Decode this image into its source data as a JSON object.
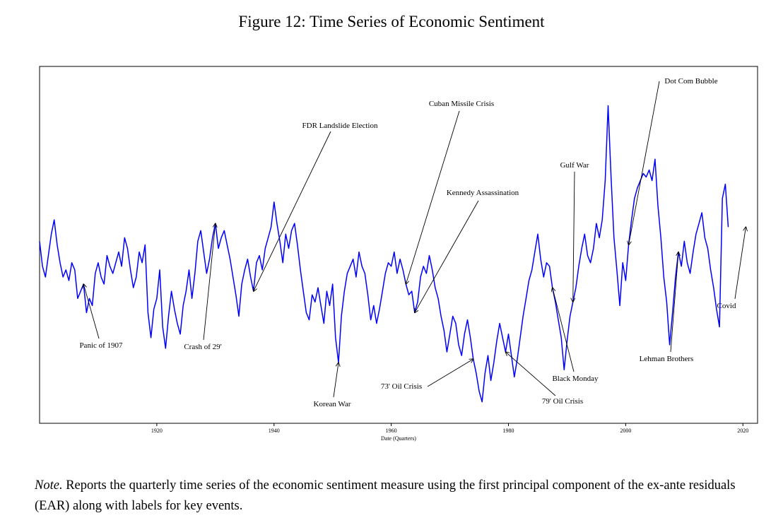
{
  "chart_data": {
    "type": "line",
    "title": "Figure 12: Time Series of Economic Sentiment",
    "xlabel": "Date (Quarters)",
    "ylabel": "",
    "xlim": [
      1900,
      2022.5
    ],
    "ylim": [
      -4.0,
      6.0
    ],
    "x_ticks": [
      1920,
      1940,
      1960,
      1980,
      2000,
      2020
    ],
    "grid": false,
    "legend": "none",
    "series": [
      {
        "name": "Economic Sentiment (first principal component of EAR)",
        "color": "#0000ff",
        "x_start": 1900,
        "x_step": 0.5,
        "values": [
          1.1,
          0.4,
          0.1,
          0.7,
          1.3,
          1.7,
          1.0,
          0.5,
          0.1,
          0.3,
          0.0,
          0.5,
          0.3,
          -0.5,
          -0.3,
          -0.1,
          -0.9,
          -0.5,
          -0.7,
          0.2,
          0.5,
          0.1,
          -0.1,
          0.7,
          0.4,
          0.2,
          0.5,
          0.8,
          0.4,
          1.2,
          0.9,
          0.3,
          -0.2,
          0.1,
          0.8,
          0.5,
          1.0,
          -0.9,
          -1.6,
          -0.8,
          -0.5,
          0.3,
          -1.3,
          -1.9,
          -1.0,
          -0.3,
          -0.8,
          -1.2,
          -1.5,
          -0.7,
          -0.3,
          0.3,
          -0.5,
          0.2,
          1.1,
          1.4,
          0.8,
          0.2,
          0.6,
          1.2,
          1.6,
          0.9,
          1.2,
          1.4,
          1.0,
          0.6,
          0.1,
          -0.4,
          -1.0,
          -0.1,
          0.3,
          0.6,
          0.1,
          -0.3,
          0.5,
          0.7,
          0.3,
          0.9,
          1.2,
          1.5,
          2.2,
          1.6,
          1.1,
          0.5,
          1.3,
          0.9,
          1.4,
          1.6,
          1.0,
          0.3,
          -0.3,
          -0.9,
          -1.1,
          -0.4,
          -0.6,
          -0.2,
          -0.7,
          -1.2,
          -0.3,
          -0.7,
          -0.1,
          -1.6,
          -2.3,
          -1.0,
          -0.3,
          0.2,
          0.4,
          0.6,
          0.1,
          0.8,
          0.4,
          0.2,
          -0.4,
          -1.1,
          -0.7,
          -1.2,
          -0.8,
          -0.3,
          0.2,
          0.5,
          0.4,
          0.8,
          0.2,
          0.6,
          0.3,
          -0.1,
          -0.4,
          -0.3,
          -0.9,
          -0.6,
          0.1,
          0.4,
          0.2,
          0.7,
          0.3,
          -0.2,
          -0.5,
          -1.0,
          -1.4,
          -2.0,
          -1.5,
          -1.0,
          -1.2,
          -1.8,
          -2.1,
          -1.5,
          -1.1,
          -1.6,
          -2.2,
          -2.6,
          -3.1,
          -3.4,
          -2.6,
          -2.1,
          -2.8,
          -2.3,
          -1.7,
          -1.2,
          -1.6,
          -2.0,
          -1.5,
          -2.1,
          -2.7,
          -2.2,
          -1.6,
          -1.0,
          -0.5,
          0.0,
          0.3,
          0.8,
          1.3,
          0.6,
          0.1,
          0.5,
          0.4,
          -0.2,
          -0.6,
          -1.1,
          -1.6,
          -2.5,
          -1.7,
          -1.0,
          -0.6,
          -0.2,
          0.4,
          0.9,
          1.3,
          0.7,
          0.5,
          0.9,
          1.6,
          1.2,
          1.7,
          2.8,
          4.9,
          2.9,
          1.2,
          0.3,
          -0.7,
          0.5,
          0.0,
          1.0,
          1.7,
          2.3,
          2.6,
          2.8,
          3.0,
          2.9,
          3.1,
          2.8,
          3.4,
          2.1,
          1.2,
          0.1,
          -0.6,
          -1.8,
          -0.9,
          0.1,
          0.8,
          0.4,
          1.1,
          0.5,
          0.2,
          0.8,
          1.3,
          1.6,
          1.9,
          1.2,
          0.9,
          0.3,
          -0.2,
          -0.8,
          -1.3,
          2.3,
          2.7,
          1.5
        ]
      }
    ],
    "annotations": [
      {
        "text": "Panic of 1907",
        "x": 1907.5
      },
      {
        "text": "Crash of 29'",
        "x": 1930.0
      },
      {
        "text": "FDR Landslide Election",
        "x": 1936.5
      },
      {
        "text": "Korean War",
        "x": 1951.0
      },
      {
        "text": "Cuban Missile Crisis",
        "x": 1962.5
      },
      {
        "text": "Kennedy Assassination",
        "x": 1964.0
      },
      {
        "text": "73' Oil Crisis",
        "x": 1974.0
      },
      {
        "text": "79' Oil Crisis",
        "x": 1979.5
      },
      {
        "text": "Black Monday",
        "x": 1987.5
      },
      {
        "text": "Gulf War",
        "x": 1991.0
      },
      {
        "text": "Dot Com Bubble",
        "x": 2000.5
      },
      {
        "text": "Lehman Brothers",
        "x": 2009.0
      },
      {
        "text": "Covid",
        "x": 2020.5
      }
    ]
  },
  "note": {
    "label": "Note.",
    "text": " Reports the quarterly time series of the economic sentiment measure using the first principal component of the ex-ante residuals (EAR) along with labels for key events."
  }
}
